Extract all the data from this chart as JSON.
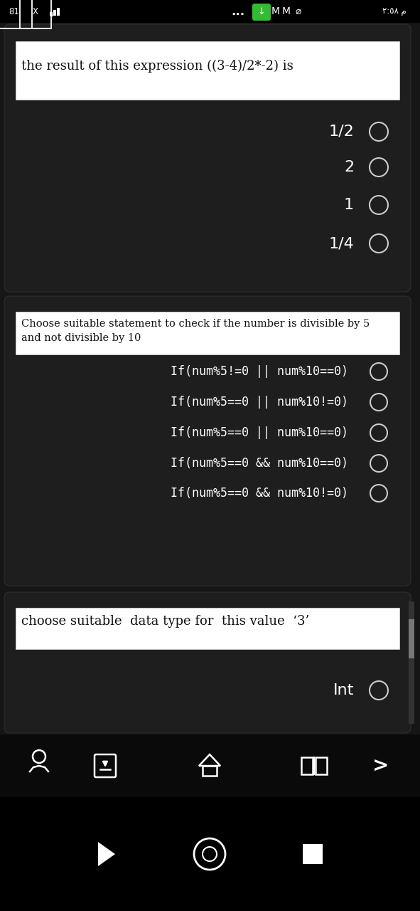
{
  "bg_color": "#161616",
  "card_bg": "#1e1e1e",
  "dark_card_bg": "#202020",
  "white_box_bg": "#ffffff",
  "text_color_white": "#ffffff",
  "text_color_black": "#111111",
  "q1_title": "the result of this expression ((3-4)/2*-2) is",
  "q1_options": [
    "1/2",
    "2",
    "1",
    "1/4"
  ],
  "q2_title_line1": "Choose suitable statement to check if the number is divisible by 5",
  "q2_title_line2": "and not divisible by 10",
  "q2_options": [
    "If(num%5!=0 || num%10==0)",
    "If(num%5==0 || num%10!=0)",
    "If(num%5==0 || num%10==0)",
    "If(num%5==0 && num%10==0)",
    "If(num%5==0 && num%10!=0)"
  ],
  "q3_title": "choose suitable  data type for  this value  ‘3’",
  "q3_options": [
    "Int"
  ]
}
